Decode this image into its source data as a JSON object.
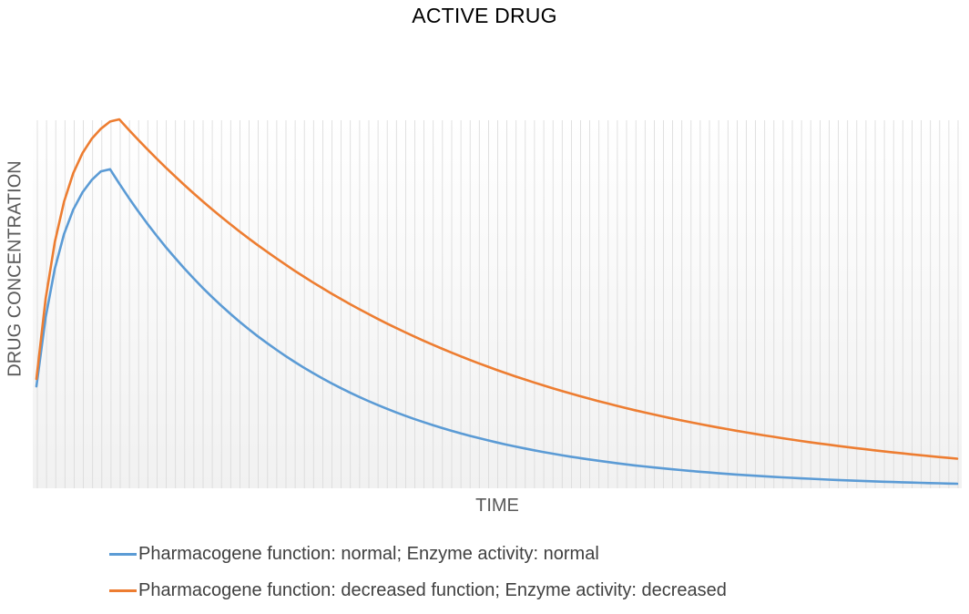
{
  "chart_data": {
    "type": "line",
    "title": "ACTIVE DRUG",
    "xlabel": "TIME",
    "ylabel": "DRUG CONCENTRATION",
    "grid": "vertical",
    "legend_position": "bottom",
    "x": [
      0,
      1,
      2,
      3,
      4,
      5,
      6,
      7,
      8,
      9,
      10,
      11,
      12,
      13,
      14,
      15,
      16,
      17,
      18,
      19,
      20,
      21,
      22,
      23,
      24,
      25,
      26,
      27,
      28,
      29,
      30,
      31,
      32,
      33,
      34,
      35,
      36,
      37,
      38,
      39,
      40,
      41,
      42,
      43,
      44,
      45,
      46,
      47,
      48,
      49,
      50,
      51,
      52,
      53,
      54,
      55,
      56,
      57,
      58,
      59,
      60,
      61,
      62,
      63,
      64,
      65,
      66,
      67,
      68,
      69,
      70,
      71,
      72,
      73,
      74,
      75,
      76,
      77,
      78,
      79,
      80,
      81,
      82,
      83,
      84,
      85,
      86,
      87,
      88,
      89,
      90,
      91,
      92,
      93,
      94,
      95,
      96,
      97,
      98,
      99,
      100
    ],
    "xlim": [
      0,
      100
    ],
    "ylim": [
      0,
      100
    ],
    "series": [
      {
        "name": "Pharmacogene function: normal; Enzyme activity: normal",
        "color": "#5b9bd5",
        "params": {
          "baseline": 27.7,
          "peak": 87.5,
          "tmax": 7.8,
          "tau": 2.9,
          "t_half": 15.0,
          "floor": 0.0,
          "rise_shape": 0.62,
          "peak_round": 1.2
        }
      },
      {
        "name": "Pharmacogene function: decreased function; Enzyme activity: decreased",
        "color": "#ed7d31",
        "params": {
          "baseline": 29.7,
          "peak": 100.8,
          "tmax": 8.8,
          "tau": 2.9,
          "t_half": 25.0,
          "floor": 0.0,
          "rise_shape": 0.62,
          "peak_round": 1.2
        }
      }
    ]
  }
}
